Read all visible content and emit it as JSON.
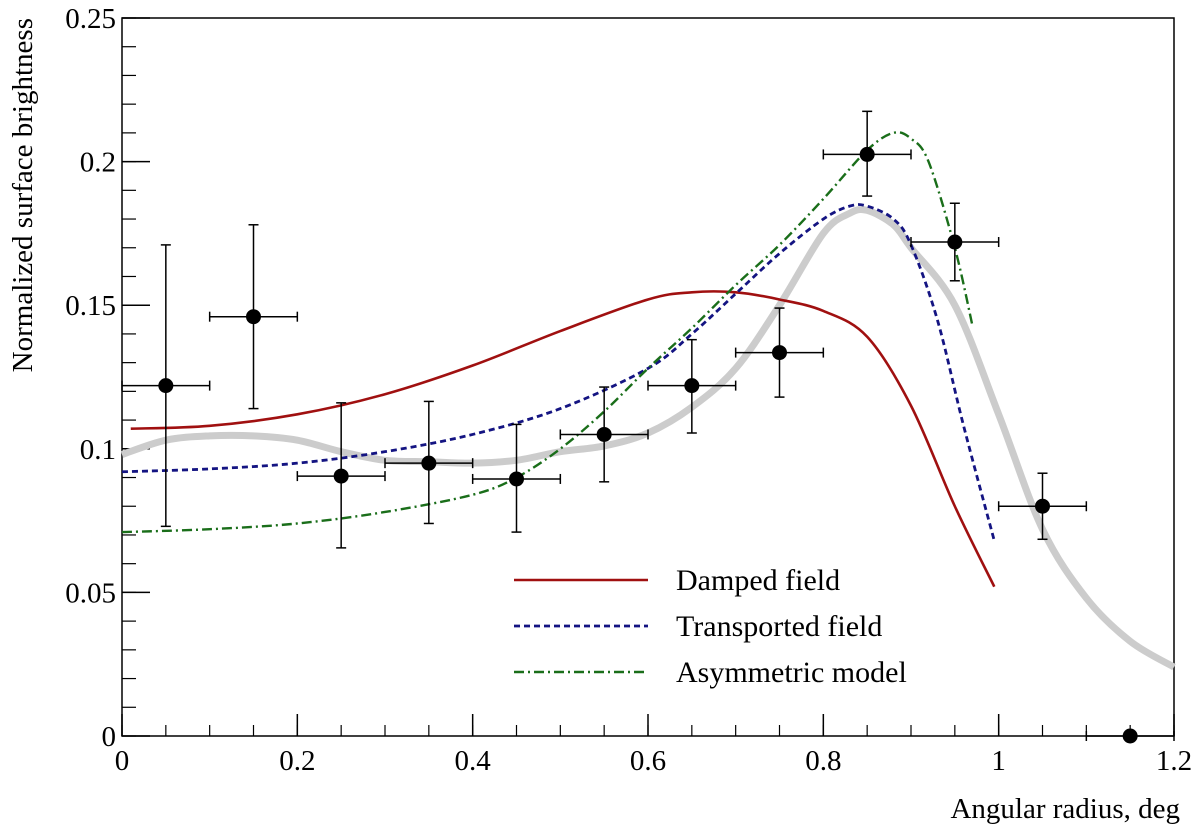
{
  "chart_data": {
    "type": "line",
    "title": "",
    "xlabel": "Angular radius, deg",
    "ylabel": "Normalized surface brightness",
    "xlim": [
      0,
      1.2
    ],
    "ylim": [
      0,
      0.25
    ],
    "x_ticks": [
      {
        "value": 0,
        "label": "0"
      },
      {
        "value": 0.2,
        "label": "0.2"
      },
      {
        "value": 0.4,
        "label": "0.4"
      },
      {
        "value": 0.6,
        "label": "0.6"
      },
      {
        "value": 0.8,
        "label": "0.8"
      },
      {
        "value": 1.0,
        "label": "1"
      },
      {
        "value": 1.2,
        "label": "1.2"
      }
    ],
    "y_ticks": [
      {
        "value": 0,
        "label": "0"
      },
      {
        "value": 0.05,
        "label": "0.05"
      },
      {
        "value": 0.1,
        "label": "0.1"
      },
      {
        "value": 0.15,
        "label": "0.15"
      },
      {
        "value": 0.2,
        "label": "0.2"
      },
      {
        "value": 0.25,
        "label": "0.25"
      }
    ],
    "grid": false,
    "legend_position": "bottom-center",
    "points": {
      "name": "Data",
      "color": "#000000",
      "x": [
        0.05,
        0.15,
        0.25,
        0.35,
        0.45,
        0.55,
        0.65,
        0.75,
        0.85,
        0.95,
        1.05,
        1.15
      ],
      "y": [
        0.122,
        0.146,
        0.0905,
        0.095,
        0.0895,
        0.105,
        0.122,
        0.1335,
        0.2025,
        0.172,
        0.08,
        0.0
      ],
      "xerr": [
        0.05,
        0.05,
        0.05,
        0.05,
        0.05,
        0.05,
        0.05,
        0.05,
        0.05,
        0.05,
        0.05,
        0.05
      ],
      "yerr_low": [
        0.049,
        0.032,
        0.025,
        0.021,
        0.0185,
        0.0165,
        0.0165,
        0.0155,
        0.0145,
        0.0135,
        0.0115,
        0.0
      ],
      "yerr_high": [
        0.049,
        0.032,
        0.0255,
        0.0215,
        0.019,
        0.0165,
        0.016,
        0.0155,
        0.015,
        0.0135,
        0.0115,
        0.0
      ]
    },
    "series": [
      {
        "name": "Reference profile",
        "in_legend": false,
        "style": "thick-solid",
        "color": "#cccccc",
        "x": [
          0.0,
          0.05,
          0.1,
          0.15,
          0.2,
          0.25,
          0.3,
          0.35,
          0.4,
          0.45,
          0.5,
          0.55,
          0.6,
          0.65,
          0.7,
          0.75,
          0.8,
          0.83,
          0.85,
          0.88,
          0.9,
          0.95,
          1.0,
          1.05,
          1.1,
          1.15,
          1.2
        ],
        "y": [
          0.098,
          0.103,
          0.1045,
          0.1045,
          0.103,
          0.099,
          0.096,
          0.0955,
          0.095,
          0.096,
          0.099,
          0.101,
          0.1055,
          0.1145,
          0.128,
          0.15,
          0.175,
          0.182,
          0.183,
          0.178,
          0.17,
          0.15,
          0.112,
          0.072,
          0.048,
          0.033,
          0.024
        ]
      },
      {
        "name": "Damped field",
        "in_legend": true,
        "style": "solid",
        "color": "#a01010",
        "x": [
          0.01,
          0.1,
          0.2,
          0.3,
          0.4,
          0.5,
          0.6,
          0.65,
          0.7,
          0.75,
          0.8,
          0.85,
          0.9,
          0.95,
          0.995
        ],
        "y": [
          0.107,
          0.108,
          0.112,
          0.119,
          0.129,
          0.141,
          0.152,
          0.1545,
          0.1545,
          0.152,
          0.148,
          0.139,
          0.115,
          0.08,
          0.052
        ]
      },
      {
        "name": "Transported field",
        "in_legend": true,
        "style": "dashed",
        "color": "#141482",
        "x": [
          0.0,
          0.1,
          0.2,
          0.3,
          0.4,
          0.5,
          0.6,
          0.65,
          0.7,
          0.75,
          0.8,
          0.83,
          0.85,
          0.88,
          0.9,
          0.93,
          0.96,
          0.995
        ],
        "y": [
          0.092,
          0.093,
          0.095,
          0.099,
          0.105,
          0.114,
          0.128,
          0.14,
          0.154,
          0.168,
          0.18,
          0.1845,
          0.1845,
          0.18,
          0.171,
          0.145,
          0.108,
          0.068
        ]
      },
      {
        "name": "Asymmetric model",
        "in_legend": true,
        "style": "dash-dot",
        "color": "#1a6e1a",
        "x": [
          0.0,
          0.1,
          0.2,
          0.3,
          0.4,
          0.45,
          0.5,
          0.55,
          0.6,
          0.65,
          0.7,
          0.75,
          0.8,
          0.85,
          0.88,
          0.9,
          0.92,
          0.95,
          0.97
        ],
        "y": [
          0.071,
          0.072,
          0.074,
          0.078,
          0.084,
          0.09,
          0.1,
          0.113,
          0.128,
          0.142,
          0.157,
          0.171,
          0.187,
          0.204,
          0.21,
          0.208,
          0.2,
          0.17,
          0.143
        ]
      }
    ]
  }
}
